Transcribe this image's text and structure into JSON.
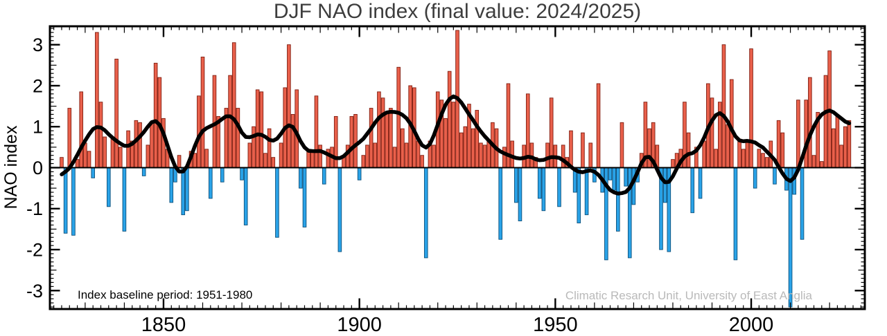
{
  "page": {
    "background": "#ffffff"
  },
  "chart_data": {
    "type": "bar",
    "title": "DJF NAO index (final value: 2024/2025)",
    "xlabel": "",
    "ylabel": "NAO index",
    "start_year": 1824,
    "end_year": 2025,
    "values": [
      0.25,
      -1.6,
      1.45,
      -1.65,
      0.2,
      1.85,
      0.6,
      0.4,
      -0.25,
      3.3,
      1.6,
      0.75,
      -0.95,
      0.7,
      2.65,
      0.5,
      -1.55,
      0.9,
      0.65,
      1.15,
      1.1,
      -0.2,
      0.55,
      1.1,
      2.55,
      2.2,
      1.2,
      0.45,
      -0.85,
      -0.35,
      0.3,
      -1.15,
      -1.05,
      0.4,
      0.35,
      1.75,
      2.7,
      0.45,
      -0.75,
      2.25,
      1.25,
      -0.35,
      1.45,
      2.25,
      3.05,
      1.45,
      -0.3,
      -1.4,
      0.6,
      1.0,
      1.9,
      1.85,
      0.35,
      0.95,
      0.25,
      -1.7,
      0.6,
      1.95,
      3.0,
      1.3,
      1.9,
      -0.5,
      -1.45,
      0.45,
      0.4,
      1.75,
      0.55,
      -0.4,
      0.45,
      0.5,
      1.25,
      -2.05,
      0.3,
      0.55,
      1.25,
      1.3,
      -0.3,
      0.3,
      0.55,
      1.45,
      0.6,
      1.85,
      1.7,
      1.35,
      1.45,
      0.5,
      2.45,
      0.95,
      0.6,
      2.0,
      1.95,
      0.65,
      0.3,
      -2.2,
      0.65,
      0.55,
      1.85,
      1.65,
      1.2,
      2.35,
      1.6,
      3.35,
      0.85,
      1.0,
      1.55,
      0.95,
      1.4,
      0.6,
      0.55,
      0.65,
      1.1,
      0.95,
      -1.75,
      0.5,
      2.05,
      0.65,
      -0.85,
      -1.3,
      0.55,
      1.8,
      0.6,
      0.25,
      -0.75,
      -1.05,
      0.6,
      1.7,
      0.55,
      -0.95,
      0.55,
      0.25,
      0.9,
      -0.6,
      -1.35,
      0.85,
      -1.15,
      0.6,
      -0.35,
      2.05,
      -0.6,
      -2.25,
      -0.3,
      -0.55,
      -1.55,
      1.1,
      -0.45,
      -2.2,
      -0.9,
      -0.35,
      0.35,
      1.6,
      0.95,
      1.1,
      0.55,
      -2.0,
      -0.85,
      -2.05,
      0.2,
      0.35,
      0.45,
      1.6,
      0.85,
      -1.1,
      0.5,
      -0.75,
      0.65,
      2.05,
      1.7,
      0.45,
      1.6,
      3.0,
      1.05,
      2.15,
      -2.25,
      0.7,
      0.45,
      0.65,
      2.9,
      -0.5,
      0.45,
      0.35,
      0.25,
      0.65,
      -0.4,
      1.15,
      0.85,
      -0.55,
      -3.4,
      -0.65,
      1.65,
      -1.75,
      1.65,
      2.2,
      0.3,
      1.35,
      0.15,
      2.25,
      2.85,
      0.95,
      1.25,
      0.55,
      1.0,
      1.15
    ],
    "overlay_line": {
      "description": "low-pass (approx. decadal) smoothed curve of annual values",
      "color": "#000000",
      "width": 5.5
    },
    "xlim": [
      1821,
      2029
    ],
    "ylim": [
      -3.45,
      3.45
    ],
    "xticks": [
      1850,
      1900,
      1950,
      2000
    ],
    "yticks": [
      -3,
      -2,
      -1,
      0,
      1,
      2,
      3
    ],
    "grid": "off",
    "legend": "none",
    "colors": {
      "positive_bar": "#e9604b",
      "positive_edge": "#7e1d10",
      "negative_bar": "#2aa3e8",
      "negative_edge": "#0d4f79",
      "line": "#000000",
      "axis": "#000000",
      "title": "#3d3d3d",
      "credit": "#b9b9b9",
      "annotation": "#000000"
    },
    "annotations": {
      "baseline_note": "Index baseline period: 1951-1980",
      "credit": "Climatic Resarch Unit, University of East Anglia"
    }
  }
}
